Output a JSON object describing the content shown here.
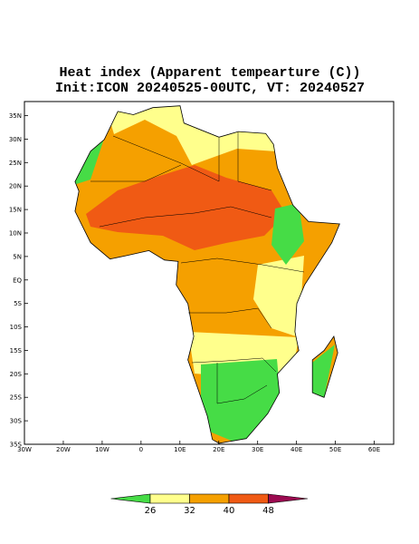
{
  "title": "Heat index (Apparent tempearture (C))",
  "subtitle": "Init:ICON 20240525-00UTC, VT: 20240527",
  "map": {
    "xlim": [
      -30,
      65
    ],
    "ylim": [
      -35,
      38
    ],
    "lon_ticks": [
      {
        "value": -30,
        "label": "30W"
      },
      {
        "value": -20,
        "label": "20W"
      },
      {
        "value": -10,
        "label": "10W"
      },
      0,
      {
        "value": 10,
        "label": "10E"
      },
      {
        "value": 20,
        "label": "20E"
      },
      {
        "value": 30,
        "label": "30E"
      },
      {
        "value": 40,
        "label": "40E"
      },
      {
        "value": 50,
        "label": "50E"
      },
      {
        "value": 60,
        "label": "60E"
      }
    ],
    "lat_ticks": [
      {
        "value": 35,
        "label": "35N"
      },
      {
        "value": 30,
        "label": "30N"
      },
      {
        "value": 25,
        "label": "25N"
      },
      {
        "value": 20,
        "label": "20N"
      },
      {
        "value": 15,
        "label": "15N"
      },
      {
        "value": 10,
        "label": "10N"
      },
      {
        "value": 5,
        "label": "5N"
      },
      {
        "value": 0,
        "label": "EQ"
      },
      {
        "value": -5,
        "label": "5S"
      },
      {
        "value": -10,
        "label": "10S"
      },
      {
        "value": -15,
        "label": "15S"
      },
      {
        "value": -20,
        "label": "20S"
      },
      {
        "value": -25,
        "label": "25S"
      },
      {
        "value": -30,
        "label": "30S"
      },
      {
        "value": -35,
        "label": "35S"
      }
    ]
  },
  "colorbar": {
    "levels": [
      26,
      32,
      40,
      48
    ],
    "colors": [
      "#46dc46",
      "#ffff8c",
      "#f5a000",
      "#f05a14",
      "#9b0a50"
    ]
  }
}
